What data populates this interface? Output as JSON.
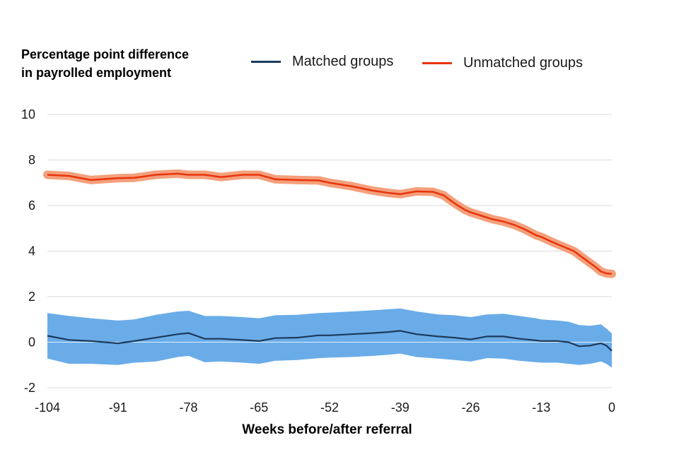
{
  "chart_data": {
    "type": "line",
    "ylabel_lines": [
      "Percentage point difference",
      "in payrolled employment"
    ],
    "xlabel": "Weeks before/after referral",
    "xlim": [
      -104,
      0
    ],
    "ylim": [
      -2,
      10
    ],
    "x_ticks": [
      "-104",
      "-91",
      "-78",
      "-65",
      "-52",
      "-39",
      "-26",
      "-13",
      "0"
    ],
    "x_tick_values": [
      -104,
      -91,
      -78,
      -65,
      -52,
      -39,
      -26,
      -13,
      0
    ],
    "y_ticks": [
      "-2",
      "0",
      "2",
      "4",
      "6",
      "8",
      "10"
    ],
    "y_tick_values": [
      -2,
      0,
      2,
      4,
      6,
      8,
      10
    ],
    "grid": true,
    "legend_position": "top",
    "series": [
      {
        "name": "Matched groups",
        "color": "#1b3a5c",
        "band_color": "#6aace8",
        "x": [
          -104,
          -100,
          -96,
          -91,
          -88,
          -84,
          -80,
          -78,
          -75,
          -72,
          -68,
          -65,
          -62,
          -58,
          -54,
          -52,
          -48,
          -44,
          -41,
          -39,
          -36,
          -32,
          -29,
          -26,
          -23,
          -20,
          -17,
          -14,
          -13,
          -10,
          -8,
          -6,
          -4,
          -2,
          -1,
          0
        ],
        "y": [
          0.28,
          0.1,
          0.05,
          -0.05,
          0.05,
          0.2,
          0.35,
          0.4,
          0.15,
          0.15,
          0.1,
          0.05,
          0.18,
          0.2,
          0.3,
          0.3,
          0.35,
          0.4,
          0.45,
          0.5,
          0.35,
          0.25,
          0.2,
          0.12,
          0.25,
          0.25,
          0.15,
          0.08,
          0.05,
          0.05,
          0.0,
          -0.18,
          -0.15,
          -0.05,
          -0.15,
          -0.38
        ],
        "lower": [
          -0.72,
          -0.95,
          -0.95,
          -1.0,
          -0.9,
          -0.85,
          -0.65,
          -0.6,
          -0.88,
          -0.85,
          -0.9,
          -0.95,
          -0.82,
          -0.78,
          -0.7,
          -0.68,
          -0.65,
          -0.6,
          -0.55,
          -0.5,
          -0.65,
          -0.72,
          -0.78,
          -0.85,
          -0.7,
          -0.72,
          -0.82,
          -0.88,
          -0.9,
          -0.9,
          -0.95,
          -1.0,
          -0.95,
          -0.85,
          -0.95,
          -1.12
        ],
        "upper": [
          1.28,
          1.15,
          1.05,
          0.95,
          1.0,
          1.2,
          1.35,
          1.38,
          1.15,
          1.15,
          1.1,
          1.05,
          1.18,
          1.2,
          1.28,
          1.3,
          1.35,
          1.4,
          1.45,
          1.48,
          1.35,
          1.22,
          1.18,
          1.1,
          1.22,
          1.25,
          1.15,
          1.05,
          1.0,
          0.95,
          0.9,
          0.75,
          0.72,
          0.78,
          0.6,
          0.38
        ]
      },
      {
        "name": "Unmatched groups",
        "color": "#e8340c",
        "band_color": "#f4a07c",
        "x": [
          -104,
          -100,
          -96,
          -91,
          -88,
          -84,
          -80,
          -78,
          -75,
          -72,
          -68,
          -65,
          -62,
          -58,
          -54,
          -52,
          -48,
          -44,
          -41,
          -39,
          -36,
          -33,
          -31,
          -29,
          -27,
          -26,
          -24,
          -22,
          -20,
          -18,
          -16,
          -14,
          -13,
          -11,
          -9,
          -7,
          -5,
          -3,
          -2,
          -1,
          0
        ],
        "y": [
          7.35,
          7.3,
          7.12,
          7.2,
          7.22,
          7.35,
          7.4,
          7.35,
          7.35,
          7.25,
          7.35,
          7.35,
          7.15,
          7.12,
          7.1,
          7.0,
          6.85,
          6.65,
          6.55,
          6.5,
          6.62,
          6.6,
          6.45,
          6.1,
          5.8,
          5.7,
          5.55,
          5.4,
          5.3,
          5.15,
          4.95,
          4.7,
          4.62,
          4.4,
          4.2,
          4.0,
          3.65,
          3.3,
          3.1,
          3.02,
          3.0
        ]
      }
    ]
  }
}
